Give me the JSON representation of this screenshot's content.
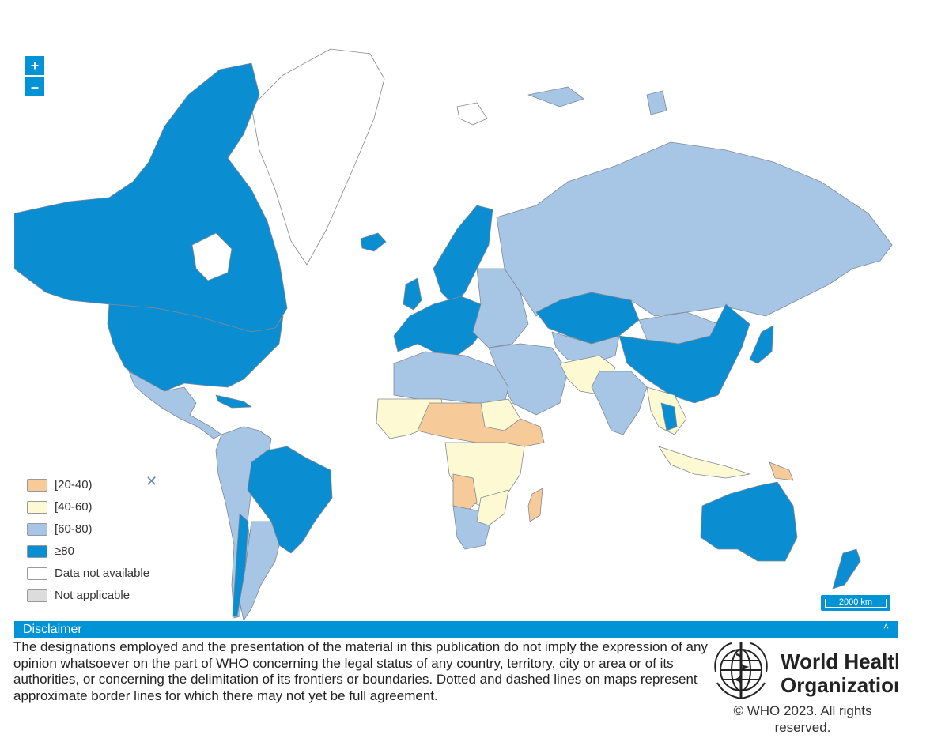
{
  "colors": {
    "band_20_40": "#f7ca9a",
    "band_40_60": "#fdf9d2",
    "band_60_80": "#a7c6e6",
    "band_80_plus": "#0a8dd1",
    "no_data": "#ffffff",
    "not_applicable": "#dcdcdc",
    "accent": "#0093d5",
    "border": "#8a8a8a"
  },
  "zoom": {
    "in_label": "+",
    "out_label": "–"
  },
  "legend": {
    "close_icon": "close-icon",
    "items": [
      {
        "label": "[20-40)",
        "color_key": "band_20_40"
      },
      {
        "label": "[40-60)",
        "color_key": "band_40_60"
      },
      {
        "label": "[60-80)",
        "color_key": "band_60_80"
      },
      {
        "label": "≥80",
        "color_key": "band_80_plus"
      },
      {
        "label": "Data not available",
        "color_key": "no_data"
      },
      {
        "label": "Not applicable",
        "color_key": "not_applicable"
      }
    ]
  },
  "scale_bar": {
    "label": "2000 km"
  },
  "disclaimer": {
    "title": "Disclaimer",
    "toggle": "˄",
    "text": "The designations employed and the presentation of the material in this publication do not imply the expression of any opinion whatsoever on the part of WHO concerning the legal status of any country, territory, city or area or of its authorities, or concerning the delimitation of its frontiers or boundaries. Dotted and dashed lines on maps represent approximate border lines for which there may not yet be full agreement."
  },
  "logo": {
    "line1": "World Health",
    "line2": "Organization",
    "icon": "who-emblem-icon"
  },
  "copyright": "© WHO 2023. All rights reserved."
}
